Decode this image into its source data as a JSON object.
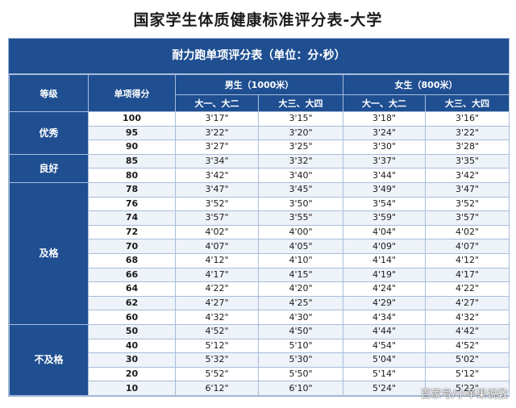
{
  "title": "国家学生体质健康标准评分表-大学",
  "caption": "耐力跑单项评分表（单位：分·秒）",
  "headers": {
    "grade": "等级",
    "score": "单项得分",
    "male": "男生（1000米）",
    "female": "女生（800米）",
    "year12": "大一、大二",
    "year34": "大三、大四"
  },
  "grades": [
    {
      "label": "优秀",
      "rows": [
        {
          "score": "100",
          "m12": "3'17\"",
          "m34": "3'15\"",
          "f12": "3'18\"",
          "f34": "3'16\""
        },
        {
          "score": "95",
          "m12": "3'22\"",
          "m34": "3'20\"",
          "f12": "3'24\"",
          "f34": "3'22\""
        },
        {
          "score": "90",
          "m12": "3'27\"",
          "m34": "3'25\"",
          "f12": "3'30\"",
          "f34": "3'28\""
        }
      ]
    },
    {
      "label": "良好",
      "rows": [
        {
          "score": "85",
          "m12": "3'34\"",
          "m34": "3'32\"",
          "f12": "3'37\"",
          "f34": "3'35\""
        },
        {
          "score": "80",
          "m12": "3'42\"",
          "m34": "3'40\"",
          "f12": "3'44\"",
          "f34": "3'42\""
        }
      ]
    },
    {
      "label": "及格",
      "rows": [
        {
          "score": "78",
          "m12": "3'47\"",
          "m34": "3'45\"",
          "f12": "3'49\"",
          "f34": "3'47\""
        },
        {
          "score": "76",
          "m12": "3'52\"",
          "m34": "3'50\"",
          "f12": "3'54\"",
          "f34": "3'52\""
        },
        {
          "score": "74",
          "m12": "3'57\"",
          "m34": "3'55\"",
          "f12": "3'59\"",
          "f34": "3'57\""
        },
        {
          "score": "72",
          "m12": "4'02\"",
          "m34": "4'00\"",
          "f12": "4'04\"",
          "f34": "4'02\""
        },
        {
          "score": "70",
          "m12": "4'07\"",
          "m34": "4'05\"",
          "f12": "4'09\"",
          "f34": "4'07\""
        },
        {
          "score": "68",
          "m12": "4'12\"",
          "m34": "4'10\"",
          "f12": "4'14\"",
          "f34": "4'12\""
        },
        {
          "score": "66",
          "m12": "4'17\"",
          "m34": "4'15\"",
          "f12": "4'19\"",
          "f34": "4'17\""
        },
        {
          "score": "64",
          "m12": "4'22\"",
          "m34": "4'20\"",
          "f12": "4'24\"",
          "f34": "4'22\""
        },
        {
          "score": "62",
          "m12": "4'27\"",
          "m34": "4'25\"",
          "f12": "4'29\"",
          "f34": "4'27\""
        },
        {
          "score": "60",
          "m12": "4'32\"",
          "m34": "4'30\"",
          "f12": "4'34\"",
          "f34": "4'32\""
        }
      ]
    },
    {
      "label": "不及格",
      "rows": [
        {
          "score": "50",
          "m12": "4'52\"",
          "m34": "4'50\"",
          "f12": "4'44\"",
          "f34": "4'42\""
        },
        {
          "score": "40",
          "m12": "5'12\"",
          "m34": "5'10\"",
          "f12": "4'54\"",
          "f34": "4'52\""
        },
        {
          "score": "30",
          "m12": "5'32\"",
          "m34": "5'30\"",
          "f12": "5'04\"",
          "f34": "5'02\""
        },
        {
          "score": "20",
          "m12": "5'52\"",
          "m34": "5'50\"",
          "f12": "5'14\"",
          "f34": "5'12\""
        },
        {
          "score": "10",
          "m12": "6'12\"",
          "m34": "6'10\"",
          "f12": "5'24\"",
          "f34": "5'22\""
        }
      ]
    }
  ],
  "watermark": "百家号/小苹果说教",
  "colors": {
    "header_bg": "#1f4f91",
    "border": "#a8bddb",
    "stripe": "#eef2f9"
  }
}
